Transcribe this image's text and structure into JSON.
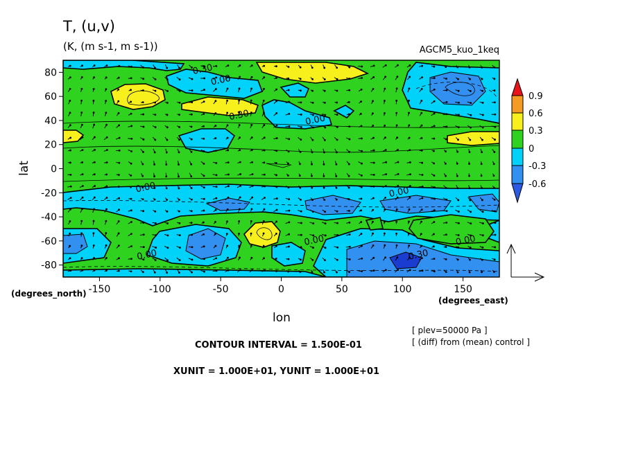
{
  "title": "T, (u,v)",
  "units": "(K, (m s-1, m s-1))",
  "experiment": "AGCM5_kuo_1keq",
  "chart_data": {
    "type": "heatmap",
    "variable": "T, (u,v)",
    "units": "(K, (m s-1, m s-1))",
    "xlabel": "lon",
    "ylabel": "lat",
    "x_unit_label": "(degrees_east)",
    "y_unit_label": "(degrees_north)",
    "xlim": [
      -180,
      180
    ],
    "ylim": [
      -90,
      90
    ],
    "x_ticks": [
      -150,
      -100,
      -50,
      0,
      50,
      100,
      150
    ],
    "y_ticks": [
      80,
      60,
      40,
      20,
      0,
      -20,
      -40,
      -60,
      -80
    ],
    "x_tick_labels": [
      "-150",
      "-100",
      "-50",
      "0",
      "50",
      "100",
      "150"
    ],
    "y_tick_labels": [
      "80",
      "60",
      "40",
      "20",
      "0",
      "-20",
      "-40",
      "-60",
      "-80"
    ],
    "colorbar": {
      "levels": [
        -0.6,
        -0.3,
        0,
        0.3,
        0.6,
        0.9
      ],
      "labels": [
        "0.9",
        "0.6",
        "0.3",
        "0",
        "-0.3",
        "-0.6"
      ],
      "colors": [
        "#e8141c",
        "#f59a22",
        "#f8f01c",
        "#2fd21e",
        "#00d2fa",
        "#3190f0",
        "#2c5ae0",
        "#1a3cd0"
      ]
    },
    "contour_labels": [
      {
        "text": "0.30",
        "lon": -65,
        "lat": 83
      },
      {
        "text": "0.00",
        "lon": -50,
        "lat": 74
      },
      {
        "text": "0.30",
        "lon": -35,
        "lat": 45
      },
      {
        "text": "0.00",
        "lon": 28,
        "lat": 41
      },
      {
        "text": "0.00",
        "lon": -112,
        "lat": -15
      },
      {
        "text": "0.00",
        "lon": 97,
        "lat": -19
      },
      {
        "text": "0.00",
        "lon": 27,
        "lat": -59
      },
      {
        "text": "0.00",
        "lon": 152,
        "lat": -59
      },
      {
        "text": "0.00",
        "lon": -111,
        "lat": -71
      },
      {
        "text": "0.30",
        "lon": 113,
        "lat": -71
      }
    ],
    "regions": {
      "positive_03": [
        {
          "lon": -65,
          "lat": 80
        },
        {
          "lon": -119,
          "lat": 57
        },
        {
          "lon": -55,
          "lat": 47
        },
        {
          "lon": 154,
          "lat": 24
        },
        {
          "lon": -165,
          "lat": 25
        },
        {
          "lon": -20,
          "lat": -52
        }
      ],
      "negative_03": [
        {
          "lon": -85,
          "lat": 62
        },
        {
          "lon": 13,
          "lat": 41
        },
        {
          "lon": -50,
          "lat": 22
        },
        {
          "lon": -20,
          "lat": -28
        },
        {
          "lon": 120,
          "lat": 60
        },
        {
          "lon": 50,
          "lat": -30
        },
        {
          "lon": -70,
          "lat": -65
        },
        {
          "lon": 20,
          "lat": -70
        }
      ],
      "negative_06": [
        {
          "lon": -60,
          "lat": -65
        },
        {
          "lon": 40,
          "lat": -32
        },
        {
          "lon": 110,
          "lat": -32
        },
        {
          "lon": 95,
          "lat": -74
        },
        {
          "lon": 130,
          "lat": 62
        },
        {
          "lon": 165,
          "lat": -40
        }
      ]
    }
  },
  "footer": {
    "pressure_note": "[ plev=50000 Pa ]",
    "diff_note": "[ (diff) from (mean) control ]",
    "contour_interval": "CONTOUR INTERVAL = 1.500E-01",
    "unit_line": "XUNIT = 1.000E+01, YUNIT = 1.000E+01"
  },
  "colors": {
    "green": "#2fd21e",
    "yellow": "#f8f01c",
    "cyan": "#00d2fa",
    "blue": "#3190f0",
    "dark_blue": "#1a3cd0",
    "orange": "#f59a22",
    "red": "#e8141c"
  }
}
